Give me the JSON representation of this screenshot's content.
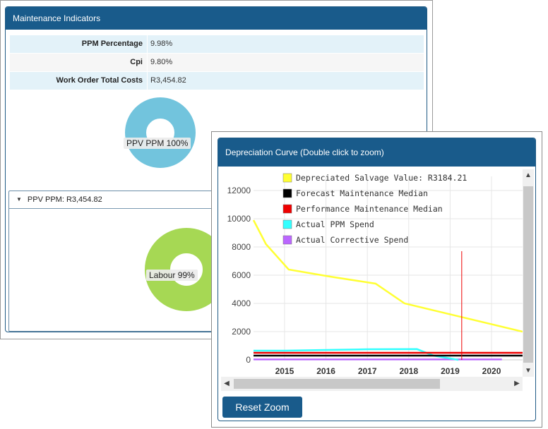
{
  "maintenance_panel": {
    "title": "Maintenance Indicators",
    "rows": [
      {
        "label": "PPM Percentage",
        "value": "9.98%"
      },
      {
        "label": "Cpi",
        "value": "9.80%"
      },
      {
        "label": "Work Order Total Costs",
        "value": "R3,454.82"
      }
    ],
    "donut_top": {
      "label": "PPV PPM 100%",
      "color": "#72c4dd",
      "percent": 100
    },
    "sub_panel": {
      "header": "PPV PPM: R3,454.82",
      "donut": {
        "label": "Labour 99%",
        "color": "#a6d854",
        "percent": 99
      }
    }
  },
  "depreciation_panel": {
    "title": "Depreciation Curve (Double click to zoom)",
    "reset_zoom_label": "Reset Zoom"
  },
  "chart_data": {
    "type": "line",
    "title": "Depreciation Curve (Double click to zoom)",
    "y_ticks": [
      "12000",
      "10000",
      "8000",
      "6000",
      "4000",
      "2000",
      "0"
    ],
    "x_ticks": [
      "2015",
      "2016",
      "2017",
      "2018",
      "2019",
      "2020"
    ],
    "ylim": [
      0,
      12000
    ],
    "xlim": [
      2014.25,
      2020.75
    ],
    "grid": true,
    "legend_position": "top",
    "series": [
      {
        "name": "Depreciated Salvage Value: R3184.21",
        "color": "#ffff33",
        "x": [
          2014.25,
          2014.55,
          2015.1,
          2016.1,
          2017.2,
          2017.9,
          2020.75
        ],
        "y": [
          9900,
          8200,
          6400,
          5900,
          5400,
          4000,
          2000
        ]
      },
      {
        "name": "Forecast Maintenance Median",
        "color": "#000000",
        "x": [
          2014.25,
          2020.75
        ],
        "y": [
          300,
          300
        ]
      },
      {
        "name": "Performance Maintenance Median",
        "color": "#ee0000",
        "x": [
          2014.25,
          2020.75
        ],
        "y": [
          500,
          500
        ]
      },
      {
        "name": "Actual PPM Spend",
        "color": "#33ffff",
        "x": [
          2014.25,
          2015.0,
          2016.0,
          2017.0,
          2018.2,
          2018.6,
          2019.2
        ],
        "y": [
          650,
          650,
          700,
          750,
          760,
          300,
          0
        ]
      },
      {
        "name": "Actual Corrective Spend",
        "color": "#bb66ff",
        "x": [
          2014.25,
          2020.25
        ],
        "y": [
          30,
          30
        ]
      }
    ],
    "marker_line": {
      "x": 2019.28,
      "color": "#ee0000"
    }
  }
}
